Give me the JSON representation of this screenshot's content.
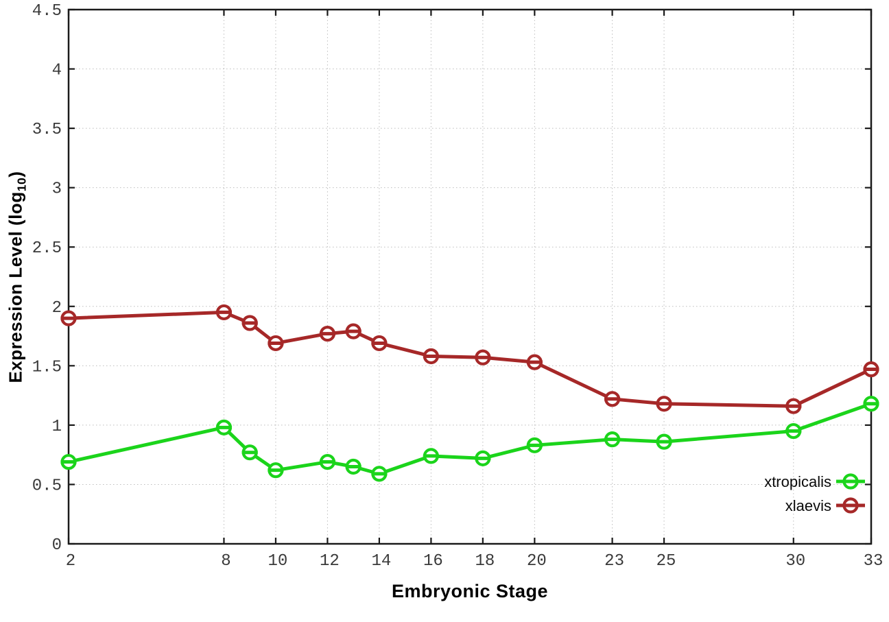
{
  "chart_data": {
    "type": "line",
    "title": "",
    "xlabel": "Embryonic Stage",
    "ylabel": "Expression Level (log10)",
    "ylabel_parts": {
      "prefix": "Expression Level (log",
      "sub": "10",
      "suffix": ")"
    },
    "xlim": [
      2,
      33
    ],
    "ylim": [
      0,
      4.5
    ],
    "grid": true,
    "legend_position": "inside-bottom-right",
    "marker": "open-circle-with-horizontal-bar",
    "x": [
      2,
      8,
      9,
      10,
      12,
      13,
      14,
      16,
      18,
      20,
      23,
      25,
      30,
      33
    ],
    "x_tick_values": [
      2,
      8,
      10,
      12,
      14,
      16,
      18,
      20,
      23,
      25,
      30,
      33
    ],
    "x_tick_labels": [
      "2",
      "8",
      "10",
      "12",
      "14",
      "16",
      "18",
      "20",
      "23",
      "25",
      "30",
      "33"
    ],
    "y_tick_values": [
      0,
      0.5,
      1,
      1.5,
      2,
      2.5,
      3,
      3.5,
      4,
      4.5
    ],
    "y_tick_labels": [
      "0",
      "0.5",
      "1",
      "1.5",
      "2",
      "2.5",
      "3",
      "3.5",
      "4",
      "4.5"
    ],
    "series": [
      {
        "name": "xtropicalis",
        "color": "#1bd41b",
        "values": [
          0.69,
          0.98,
          0.77,
          0.62,
          0.69,
          0.65,
          0.59,
          0.74,
          0.72,
          0.83,
          0.88,
          0.86,
          0.95,
          1.18
        ]
      },
      {
        "name": "xlaevis",
        "color": "#a62828",
        "values": [
          1.9,
          1.95,
          1.86,
          1.69,
          1.77,
          1.79,
          1.69,
          1.58,
          1.57,
          1.53,
          1.22,
          1.18,
          1.16,
          1.47
        ]
      }
    ],
    "colors": {
      "axis": "#1a1a1a",
      "grid": "#bdbdbd",
      "tick_label": "#3a3a3a",
      "background": "#ffffff"
    }
  }
}
